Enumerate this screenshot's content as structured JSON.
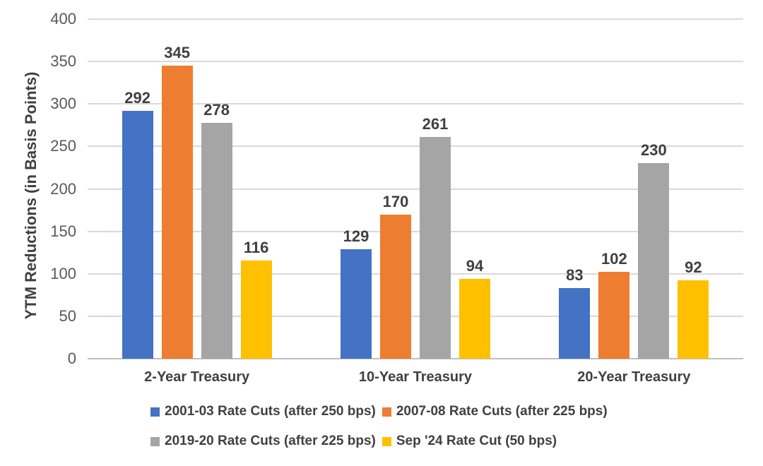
{
  "chart_data": {
    "type": "bar",
    "title": "",
    "xlabel": "",
    "ylabel": "YTM Reductions (in Basis Points)",
    "ylim": [
      0,
      400
    ],
    "ytick_step": 50,
    "y_tick_labels": [
      "400",
      "350",
      "300",
      "250",
      "200",
      "150",
      "100",
      "50",
      "0"
    ],
    "grid": true,
    "categories": [
      "2-Year Treasury",
      "10-Year Treasury",
      "20-Year Treasury"
    ],
    "series": [
      {
        "name": "2001-03 Rate Cuts (after 250 bps)",
        "color": "#4472C4",
        "values": [
          292,
          129,
          83
        ]
      },
      {
        "name": "2007-08 Rate Cuts (after 225 bps)",
        "color": "#ED7D31",
        "values": [
          345,
          170,
          102
        ]
      },
      {
        "name": "2019-20 Rate Cuts (after 225 bps)",
        "color": "#A5A5A5",
        "values": [
          278,
          261,
          230
        ]
      },
      {
        "name": "Sep '24 Rate Cut (50 bps)",
        "color": "#FFC000",
        "values": [
          116,
          94,
          92
        ]
      }
    ],
    "data_labels_shown": true,
    "legend": {
      "position": "bottom",
      "rows": [
        [
          0,
          1
        ],
        [
          2,
          3
        ]
      ]
    },
    "colors": {
      "background": "#FFFFFF",
      "gridline": "#D9D9D9",
      "axis_line": "#BFBFBF",
      "tick_label": "#595959",
      "data_label": "#3F3F3F",
      "category_label": "#404040",
      "legend_label": "#404040",
      "axis_title": "#404040"
    }
  }
}
